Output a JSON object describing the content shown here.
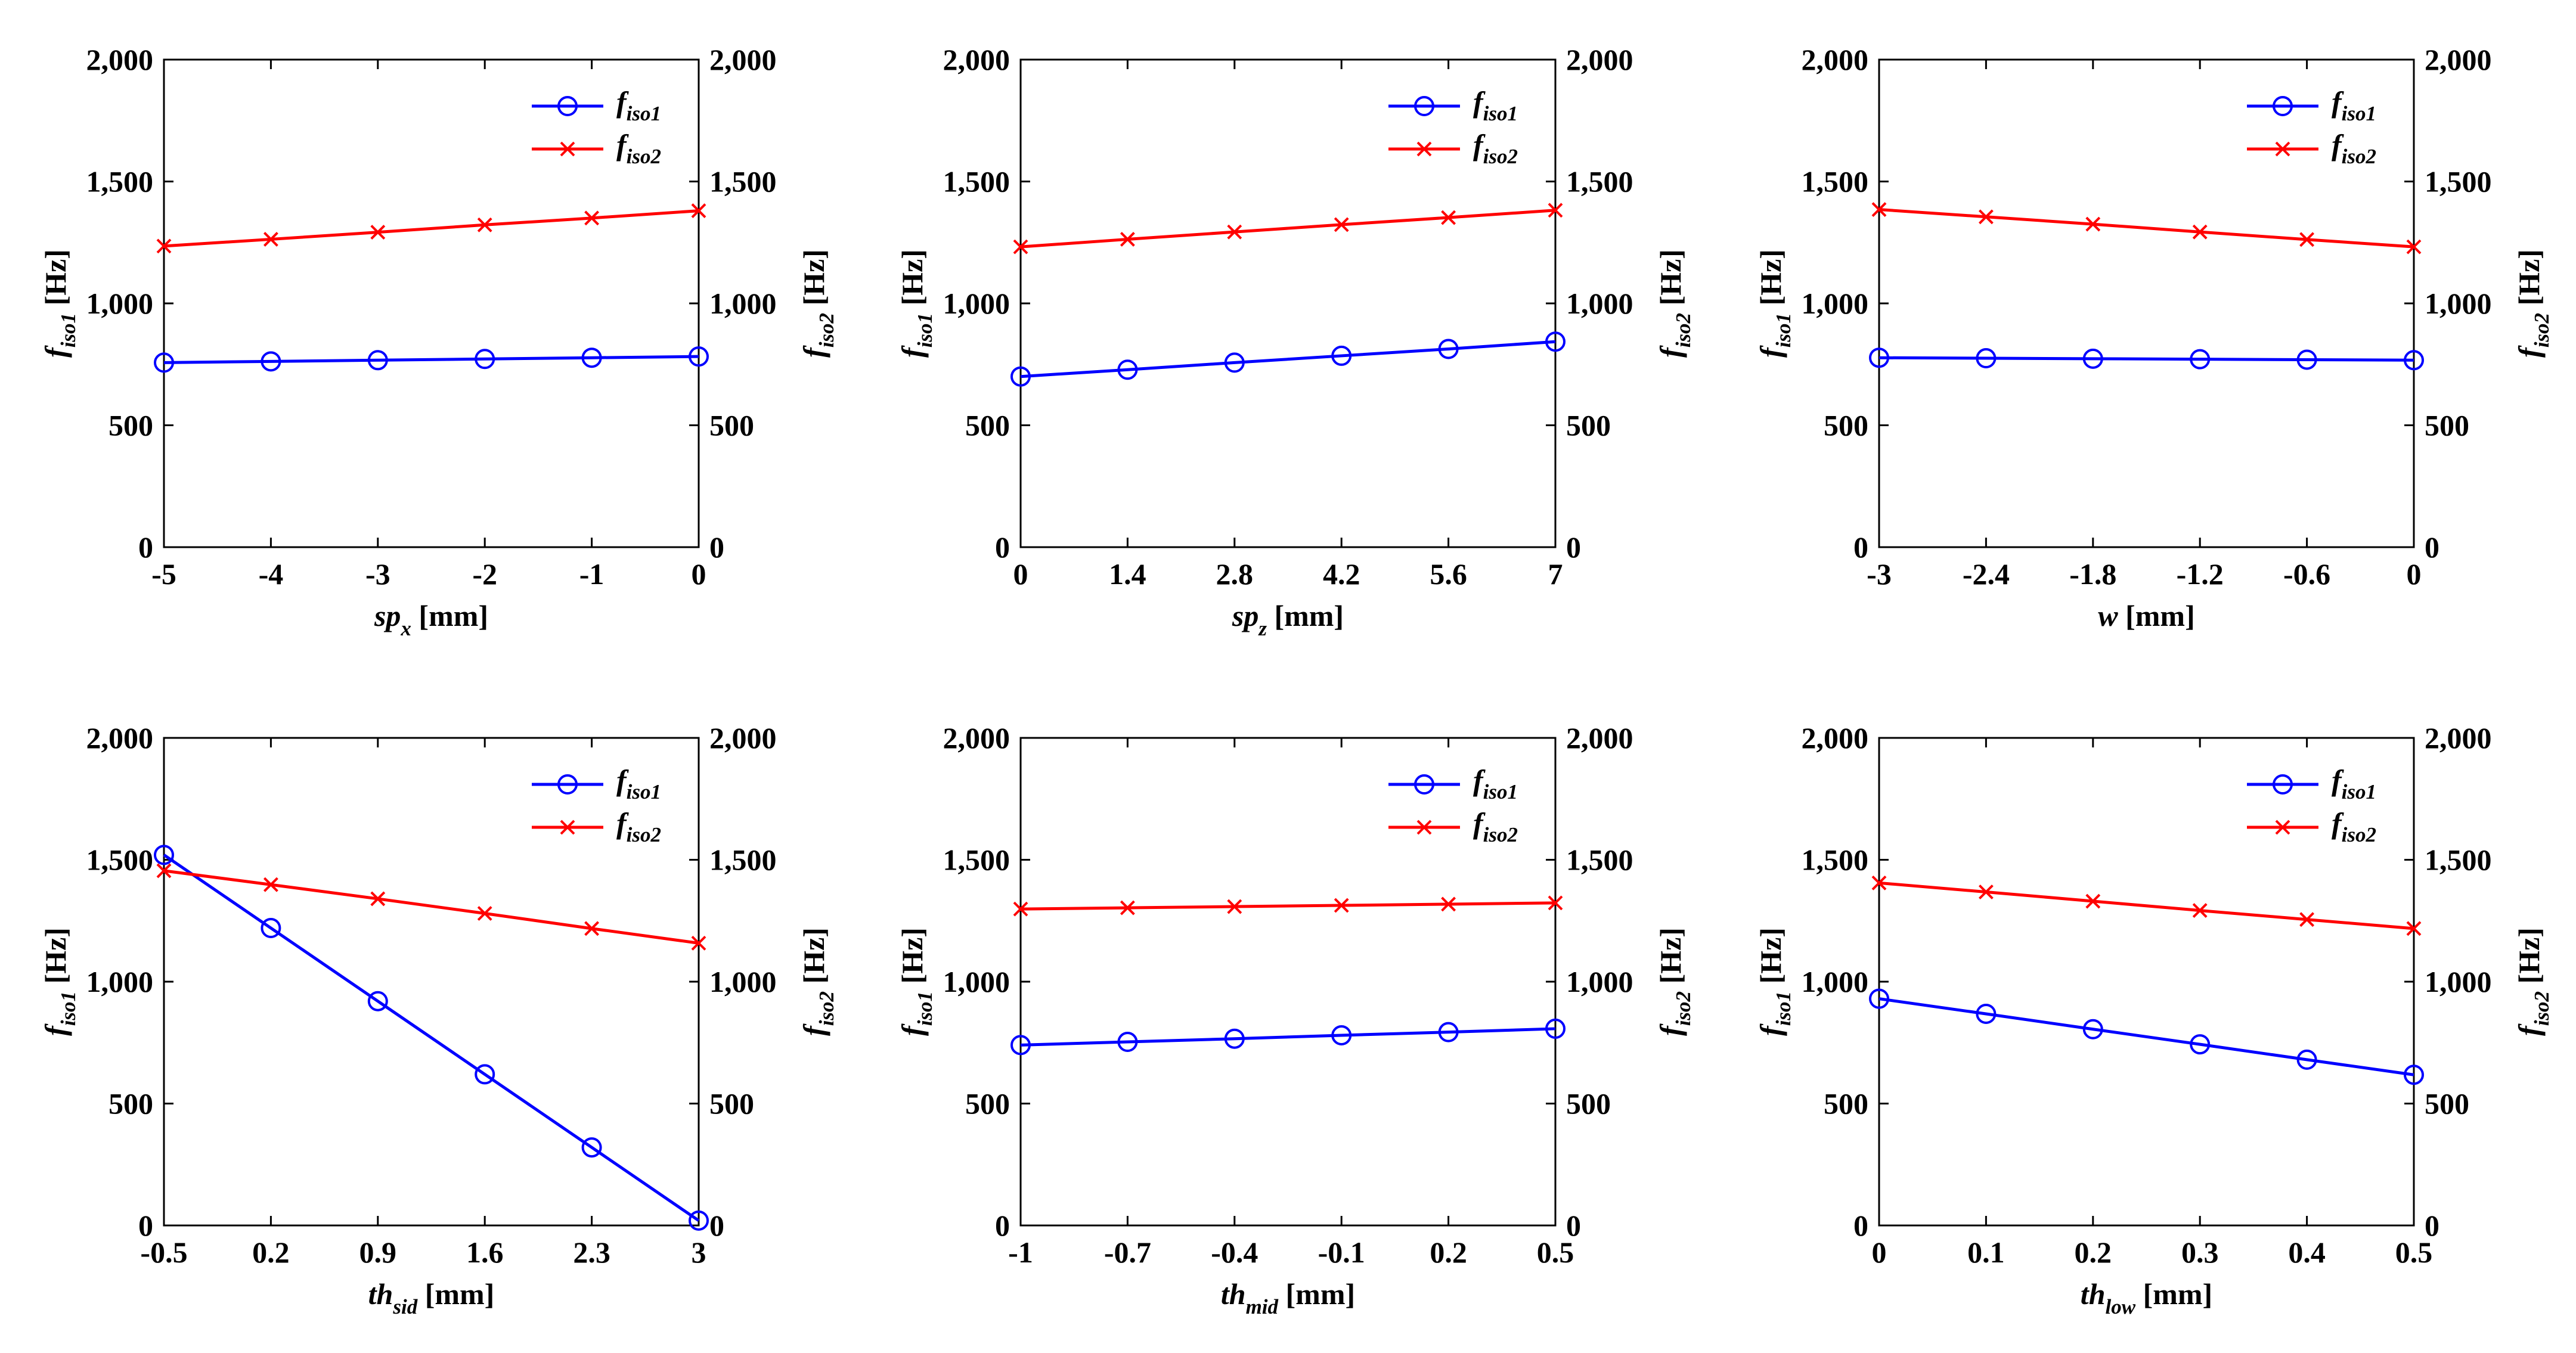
{
  "figure": {
    "y_ticks": [
      "0",
      "500",
      "1,000",
      "1,500",
      "2,000"
    ],
    "y_values": [
      0,
      500,
      1000,
      1500,
      2000
    ],
    "y_label_left": {
      "base": "f",
      "sub": "iso1",
      "unit": " [Hz]"
    },
    "y_label_right": {
      "base": "f",
      "sub": "iso2",
      "unit": " [Hz]"
    },
    "legend": [
      {
        "base": "f",
        "sub": "iso1",
        "color": "#0000ff",
        "marker": "circle"
      },
      {
        "base": "f",
        "sub": "iso2",
        "color": "#ff0000",
        "marker": "x"
      }
    ]
  },
  "chart_data": [
    {
      "type": "line",
      "xlabel": {
        "base": "sp",
        "sub": "x",
        "unit": " [mm]"
      },
      "x": [
        -5,
        -4,
        -3,
        -2,
        -1,
        0
      ],
      "x_ticks": [
        "-5",
        "-4",
        "-3",
        "-2",
        "-1",
        "0"
      ],
      "xlim": [
        -5,
        0
      ],
      "ylim": [
        0,
        2000
      ],
      "series": [
        {
          "name": "f_iso1",
          "color": "#0000ff",
          "marker": "circle",
          "values": [
            757,
            762,
            767,
            772,
            777,
            782
          ]
        },
        {
          "name": "f_iso2",
          "color": "#ff0000",
          "marker": "x",
          "values": [
            1235,
            1263,
            1292,
            1322,
            1350,
            1380
          ]
        }
      ]
    },
    {
      "type": "line",
      "xlabel": {
        "base": "sp",
        "sub": "z",
        "unit": " [mm]"
      },
      "x": [
        0,
        1.4,
        2.8,
        4.2,
        5.6,
        7
      ],
      "x_ticks": [
        "0",
        "1.4",
        "2.8",
        "4.2",
        "5.6",
        "7"
      ],
      "xlim": [
        0,
        7
      ],
      "ylim": [
        0,
        2000
      ],
      "series": [
        {
          "name": "f_iso1",
          "color": "#0000ff",
          "marker": "circle",
          "values": [
            700,
            728,
            757,
            785,
            813,
            843
          ]
        },
        {
          "name": "f_iso2",
          "color": "#ff0000",
          "marker": "x",
          "values": [
            1232,
            1263,
            1293,
            1323,
            1352,
            1382
          ]
        }
      ]
    },
    {
      "type": "line",
      "xlabel": {
        "base": "w",
        "sub": "",
        "unit": " [mm]"
      },
      "x": [
        -3,
        -2.4,
        -1.8,
        -1.2,
        -0.6,
        0
      ],
      "x_ticks": [
        "-3",
        "-2.4",
        "-1.8",
        "-1.2",
        "-0.6",
        "0"
      ],
      "xlim": [
        -3,
        0
      ],
      "ylim": [
        0,
        2000
      ],
      "series": [
        {
          "name": "f_iso1",
          "color": "#0000ff",
          "marker": "circle",
          "values": [
            777,
            775,
            773,
            771,
            769,
            767
          ]
        },
        {
          "name": "f_iso2",
          "color": "#ff0000",
          "marker": "x",
          "values": [
            1385,
            1355,
            1325,
            1293,
            1262,
            1232
          ]
        }
      ]
    },
    {
      "type": "line",
      "xlabel": {
        "base": "th",
        "sub": "sid",
        "unit": " [mm]"
      },
      "x": [
        -0.5,
        0.2,
        0.9,
        1.6,
        2.3,
        3
      ],
      "x_ticks": [
        "-0.5",
        "0.2",
        "0.9",
        "1.6",
        "2.3",
        "3"
      ],
      "xlim": [
        -0.5,
        3
      ],
      "ylim": [
        0,
        2000
      ],
      "series": [
        {
          "name": "f_iso1",
          "color": "#0000ff",
          "marker": "circle",
          "values": [
            1520,
            1220,
            920,
            620,
            320,
            20
          ]
        },
        {
          "name": "f_iso2",
          "color": "#ff0000",
          "marker": "x",
          "values": [
            1455,
            1398,
            1340,
            1280,
            1218,
            1158
          ]
        }
      ]
    },
    {
      "type": "line",
      "xlabel": {
        "base": "th",
        "sub": "mid",
        "unit": " [mm]"
      },
      "x": [
        -1,
        -0.7,
        -0.4,
        -0.1,
        0.2,
        0.5
      ],
      "x_ticks": [
        "-1",
        "-0.7",
        "-0.4",
        "-0.1",
        "0.2",
        "0.5"
      ],
      "xlim": [
        -1,
        0.5
      ],
      "ylim": [
        0,
        2000
      ],
      "series": [
        {
          "name": "f_iso1",
          "color": "#0000ff",
          "marker": "circle",
          "values": [
            740,
            753,
            766,
            780,
            793,
            807
          ]
        },
        {
          "name": "f_iso2",
          "color": "#ff0000",
          "marker": "x",
          "values": [
            1298,
            1303,
            1308,
            1313,
            1318,
            1323
          ]
        }
      ]
    },
    {
      "type": "line",
      "xlabel": {
        "base": "th",
        "sub": "low",
        "unit": " [mm]"
      },
      "x": [
        0,
        0.1,
        0.2,
        0.3,
        0.4,
        0.5
      ],
      "x_ticks": [
        "0",
        "0.1",
        "0.2",
        "0.3",
        "0.4",
        "0.5"
      ],
      "xlim": [
        0,
        0.5
      ],
      "ylim": [
        0,
        2000
      ],
      "series": [
        {
          "name": "f_iso1",
          "color": "#0000ff",
          "marker": "circle",
          "values": [
            930,
            868,
            805,
            743,
            680,
            618
          ]
        },
        {
          "name": "f_iso2",
          "color": "#ff0000",
          "marker": "x",
          "values": [
            1405,
            1368,
            1330,
            1292,
            1255,
            1218
          ]
        }
      ]
    }
  ]
}
